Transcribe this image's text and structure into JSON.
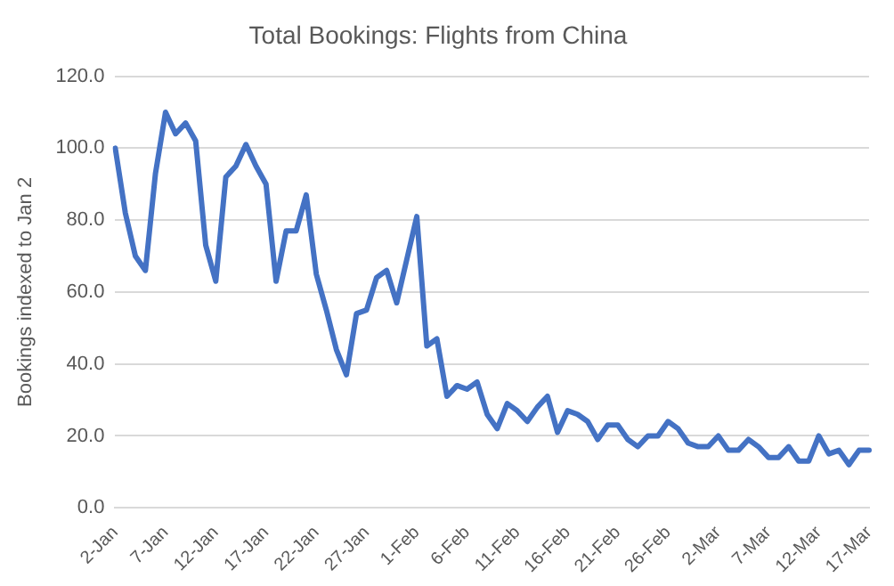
{
  "chart_data": {
    "type": "line",
    "title": "Total Bookings: Flights from China",
    "ylabel": "Bookings indexed to Jan 2",
    "categories": [
      "2-Jan",
      null,
      null,
      null,
      null,
      "7-Jan",
      null,
      null,
      null,
      null,
      "12-Jan",
      null,
      null,
      null,
      null,
      "17-Jan",
      null,
      null,
      null,
      null,
      "22-Jan",
      null,
      null,
      null,
      null,
      "27-Jan",
      null,
      null,
      null,
      null,
      "1-Feb",
      null,
      null,
      null,
      null,
      "6-Feb",
      null,
      null,
      null,
      null,
      "11-Feb",
      null,
      null,
      null,
      null,
      "16-Feb",
      null,
      null,
      null,
      null,
      "21-Feb",
      null,
      null,
      null,
      null,
      "26-Feb",
      null,
      null,
      null,
      null,
      "2-Mar",
      null,
      null,
      null,
      null,
      "7-Mar",
      null,
      null,
      null,
      null,
      "12-Mar",
      null,
      null,
      null,
      null,
      "17-Mar"
    ],
    "series": [
      {
        "color": "#4472c4",
        "values": [
          100,
          82,
          70,
          66,
          93,
          110,
          104,
          107,
          102,
          73,
          63,
          92,
          95,
          101,
          95,
          90,
          63,
          77,
          77,
          87,
          65,
          55,
          44,
          37,
          54,
          55,
          64,
          66,
          57,
          69,
          81,
          45,
          47,
          31,
          34,
          33,
          35,
          26,
          22,
          29,
          27,
          24,
          28,
          31,
          21,
          27,
          26,
          24,
          19,
          23,
          23,
          19,
          17,
          20,
          20,
          24,
          22,
          18,
          17,
          17,
          20,
          16,
          16,
          19,
          17,
          14,
          14,
          17,
          13,
          13,
          20,
          15,
          16,
          12,
          16,
          16
        ]
      }
    ],
    "ylim": [
      0,
      120
    ],
    "yticks": [
      {
        "value": 0,
        "label": "0.0"
      },
      {
        "value": 20,
        "label": "20.0"
      },
      {
        "value": 40,
        "label": "40.0"
      },
      {
        "value": 60,
        "label": "60.0"
      },
      {
        "value": 80,
        "label": "80.0"
      },
      {
        "value": 100,
        "label": "100.0"
      },
      {
        "value": 120,
        "label": "120.0"
      }
    ],
    "grid": "y",
    "legend": false,
    "marker": "none",
    "line_style": "solid"
  }
}
